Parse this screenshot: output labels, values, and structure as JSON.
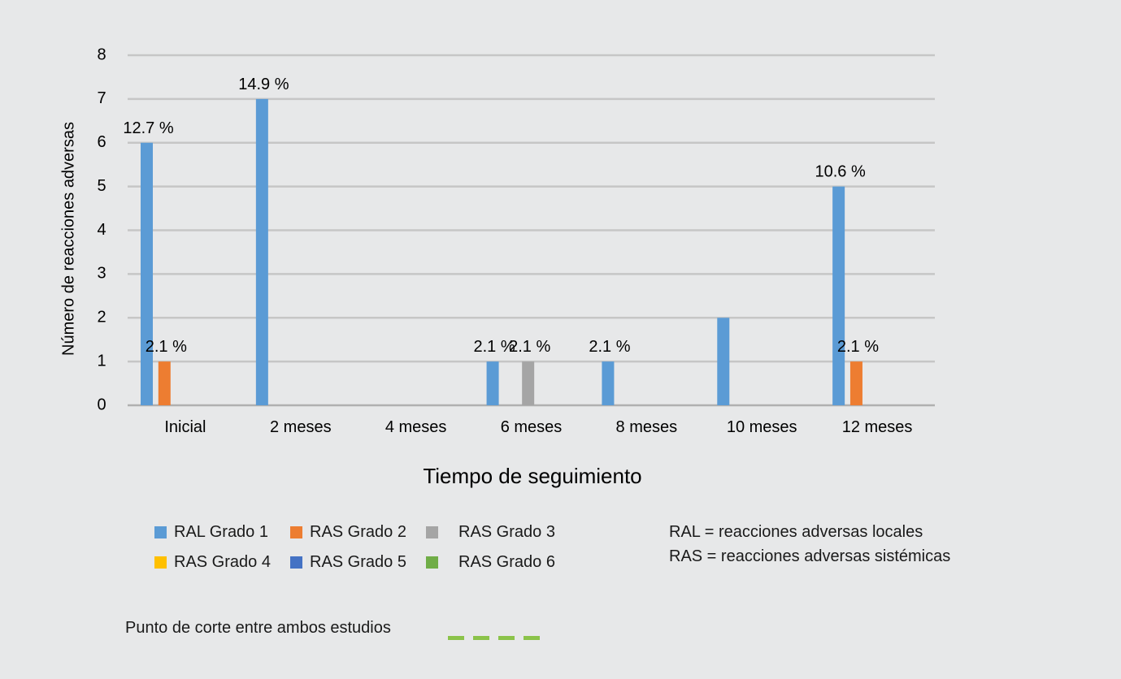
{
  "chart_data": {
    "type": "bar",
    "ylabel": "Número de reacciones adversas",
    "xlabel": "Tiempo de seguimiento",
    "ylim": [
      0,
      8
    ],
    "yticks": [
      "0",
      "1",
      "2",
      "3",
      "4",
      "5",
      "6",
      "7",
      "8"
    ],
    "grid": true,
    "categories": [
      "Inicial",
      "2 meses",
      "4 meses",
      "6 meses",
      "8 meses",
      "10 meses",
      "12 meses"
    ],
    "series": [
      {
        "name": "RAL Grado 1",
        "color": "#5b9bd5",
        "values": [
          6,
          7,
          0,
          1,
          1,
          2,
          5
        ]
      },
      {
        "name": "RAS Grado 2",
        "color": "#ed7d31",
        "values": [
          1,
          0,
          0,
          0,
          0,
          0,
          1
        ]
      },
      {
        "name": "RAS Grado 3",
        "color": "#a5a5a5",
        "values": [
          0,
          0,
          0,
          1,
          0,
          0,
          0
        ]
      },
      {
        "name": "RAS Grado 4",
        "color": "#ffc000",
        "values": [
          0,
          0,
          0,
          0,
          0,
          0,
          0
        ]
      },
      {
        "name": "RAS Grado 5",
        "color": "#4472c4",
        "values": [
          0,
          0,
          0,
          0,
          0,
          0,
          0
        ]
      },
      {
        "name": "RAS Grado 6",
        "color": "#70ad47",
        "values": [
          0,
          0,
          0,
          0,
          0,
          0,
          0
        ]
      }
    ],
    "data_labels": [
      {
        "category": 0,
        "series": 0,
        "text": "12.7 %"
      },
      {
        "category": 0,
        "series": 1,
        "text": "2.1 %"
      },
      {
        "category": 1,
        "series": 0,
        "text": "14.9 %"
      },
      {
        "category": 3,
        "series": 0,
        "text": "2.1 %"
      },
      {
        "category": 3,
        "series": 2,
        "text": "2.1 %"
      },
      {
        "category": 4,
        "series": 0,
        "text": "2.1 %"
      },
      {
        "category": 6,
        "series": 0,
        "text": "10.6 %"
      },
      {
        "category": 6,
        "series": 1,
        "text": "2.1 %"
      }
    ],
    "legend_position": "bottom-left"
  },
  "notes": {
    "ral": "RAL =  reacciones adversas locales",
    "ras": "RAS = reacciones adversas sistémicas"
  },
  "cutoff": {
    "label": "Punto de corte entre ambos estudios",
    "color": "#8bc34a"
  }
}
